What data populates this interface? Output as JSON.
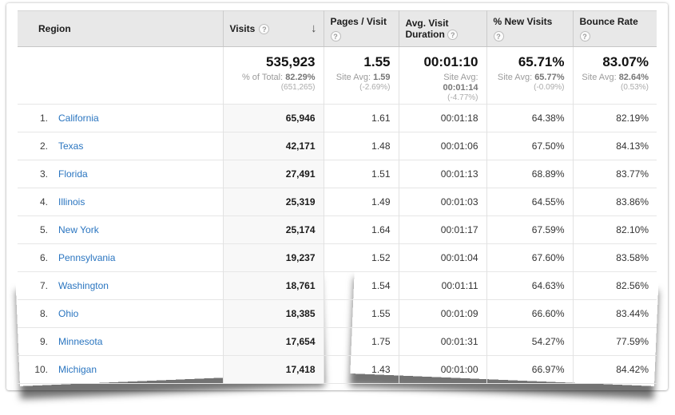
{
  "icons": {
    "help_glyph": "?",
    "sort_desc_glyph": "↓"
  },
  "colors": {
    "link": "#2a75c0",
    "header_bg": "#e8e8e8",
    "sorted_column_bg": "#f8f8f8"
  },
  "table": {
    "columns": [
      {
        "label": "Region"
      },
      {
        "label": "Visits",
        "sorted": "descending"
      },
      {
        "label": "Pages / Visit"
      },
      {
        "label": "Avg. Visit Duration"
      },
      {
        "label": "% New Visits"
      },
      {
        "label": "Bounce Rate"
      }
    ],
    "summary": {
      "visits": {
        "value": "535,923",
        "sub_label": "% of Total:",
        "sub_value": "82.29%",
        "note": "(651,265)"
      },
      "pages_per_visit": {
        "value": "1.55",
        "sub_label": "Site Avg:",
        "sub_value": "1.59",
        "note": "(-2.69%)"
      },
      "avg_visit_duration": {
        "value": "00:01:10",
        "sub_label": "Site Avg:",
        "sub_value": "00:01:14",
        "note": "(-4.77%)"
      },
      "pct_new_visits": {
        "value": "65.71%",
        "sub_label": "Site Avg:",
        "sub_value": "65.77%",
        "note": "(-0.09%)"
      },
      "bounce_rate": {
        "value": "83.07%",
        "sub_label": "Site Avg:",
        "sub_value": "82.64%",
        "note": "(0.53%)"
      }
    },
    "rows": [
      {
        "rank": "1.",
        "region": "California",
        "visits": "65,946",
        "pages_per_visit": "1.61",
        "avg_visit_duration": "00:01:18",
        "pct_new_visits": "64.38%",
        "bounce_rate": "82.19%"
      },
      {
        "rank": "2.",
        "region": "Texas",
        "visits": "42,171",
        "pages_per_visit": "1.48",
        "avg_visit_duration": "00:01:06",
        "pct_new_visits": "67.50%",
        "bounce_rate": "84.13%"
      },
      {
        "rank": "3.",
        "region": "Florida",
        "visits": "27,491",
        "pages_per_visit": "1.51",
        "avg_visit_duration": "00:01:13",
        "pct_new_visits": "68.89%",
        "bounce_rate": "83.77%"
      },
      {
        "rank": "4.",
        "region": "Illinois",
        "visits": "25,319",
        "pages_per_visit": "1.49",
        "avg_visit_duration": "00:01:03",
        "pct_new_visits": "64.55%",
        "bounce_rate": "83.86%"
      },
      {
        "rank": "5.",
        "region": "New York",
        "visits": "25,174",
        "pages_per_visit": "1.64",
        "avg_visit_duration": "00:01:17",
        "pct_new_visits": "67.59%",
        "bounce_rate": "82.10%"
      },
      {
        "rank": "6.",
        "region": "Pennsylvania",
        "visits": "19,237",
        "pages_per_visit": "1.52",
        "avg_visit_duration": "00:01:04",
        "pct_new_visits": "67.60%",
        "bounce_rate": "83.58%"
      },
      {
        "rank": "7.",
        "region": "Washington",
        "visits": "18,761",
        "pages_per_visit": "1.54",
        "avg_visit_duration": "00:01:11",
        "pct_new_visits": "64.63%",
        "bounce_rate": "82.56%"
      },
      {
        "rank": "8.",
        "region": "Ohio",
        "visits": "18,385",
        "pages_per_visit": "1.55",
        "avg_visit_duration": "00:01:09",
        "pct_new_visits": "66.60%",
        "bounce_rate": "83.44%"
      },
      {
        "rank": "9.",
        "region": "Minnesota",
        "visits": "17,654",
        "pages_per_visit": "1.75",
        "avg_visit_duration": "00:01:31",
        "pct_new_visits": "54.27%",
        "bounce_rate": "77.59%"
      },
      {
        "rank": "10.",
        "region": "Michigan",
        "visits": "17,418",
        "pages_per_visit": "1.43",
        "avg_visit_duration": "00:01:00",
        "pct_new_visits": "66.97%",
        "bounce_rate": "84.42%"
      }
    ]
  }
}
